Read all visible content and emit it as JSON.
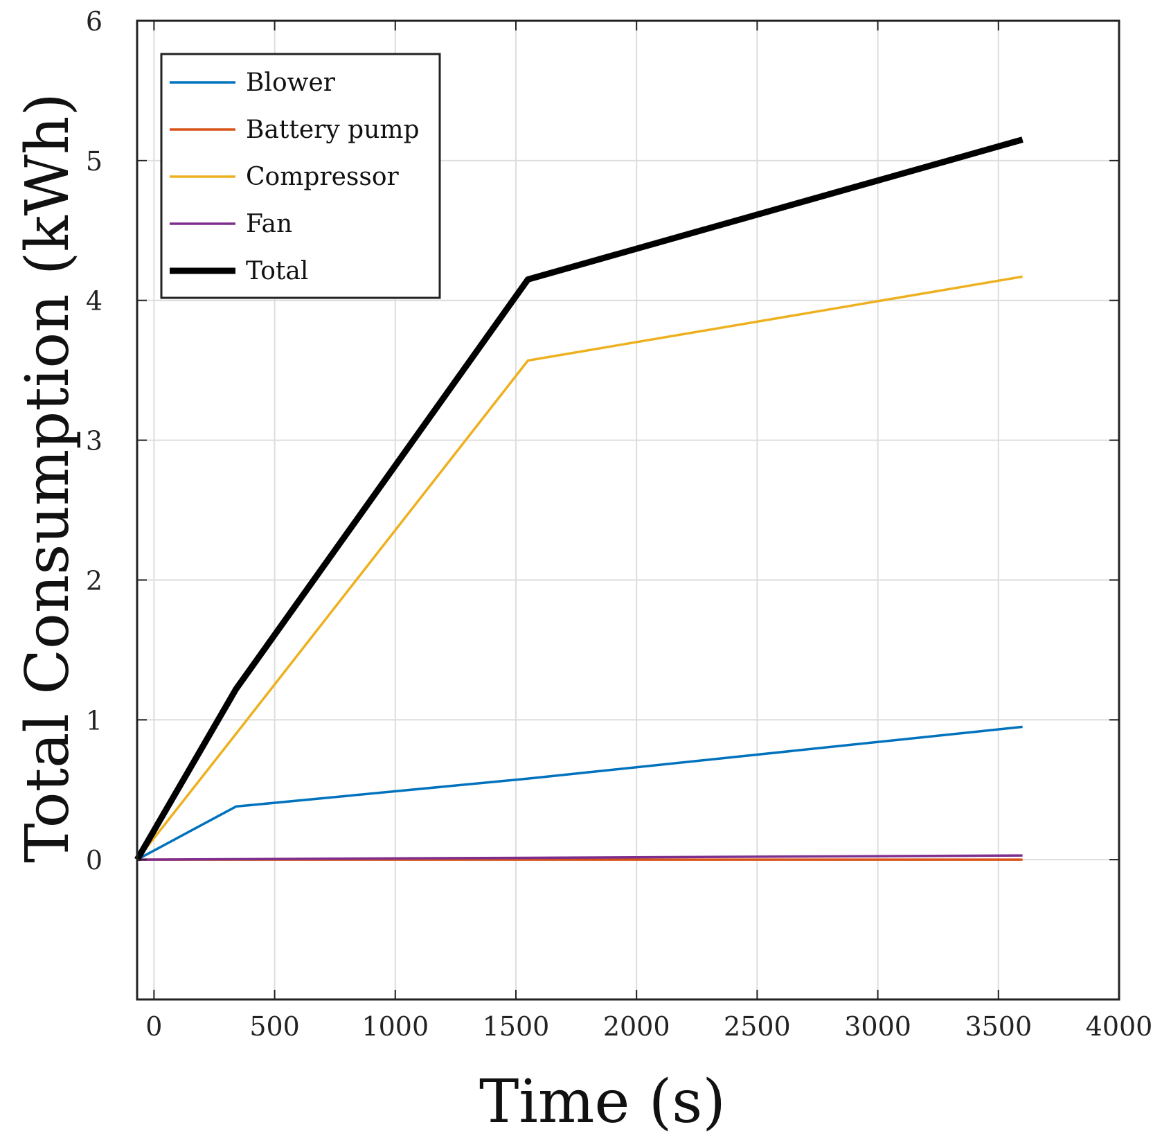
{
  "chart_data": {
    "type": "line",
    "title": "",
    "xlabel": "Time (s)",
    "ylabel": "Total Consumption (kWh)",
    "xlim": [
      -70,
      4000
    ],
    "ylim": [
      -1,
      6
    ],
    "xticks": [
      0,
      500,
      1000,
      1500,
      2000,
      2500,
      3000,
      3500,
      4000
    ],
    "xtick_labels": [
      "0",
      "500",
      "1000",
      "1500",
      "2000",
      "2500",
      "3000",
      "3500",
      "4000"
    ],
    "yticks": [
      0,
      1,
      2,
      3,
      4,
      5,
      6
    ],
    "ytick_labels": [
      "0",
      "1",
      "2",
      "3",
      "4",
      "5",
      "6"
    ],
    "grid": true,
    "legend_position": "top-left",
    "series": [
      {
        "name": "Blower",
        "color": "#0072BD",
        "x": [
          -70,
          340,
          1550,
          3600
        ],
        "y": [
          0.0,
          0.38,
          0.58,
          0.95
        ]
      },
      {
        "name": "Battery pump",
        "color": "#D95319",
        "x": [
          -70,
          3600
        ],
        "y": [
          0.0,
          0.0
        ]
      },
      {
        "name": "Compressor",
        "color": "#EDB120",
        "x": [
          -70,
          340,
          1550,
          3600
        ],
        "y": [
          0.0,
          0.9,
          3.57,
          4.17
        ]
      },
      {
        "name": "Fan",
        "color": "#7E2F8E",
        "x": [
          -70,
          3600
        ],
        "y": [
          0.0,
          0.03
        ]
      },
      {
        "name": "Total",
        "color": "#000000",
        "x": [
          -70,
          340,
          1550,
          3600
        ],
        "y": [
          0.0,
          1.22,
          4.15,
          5.15
        ]
      }
    ]
  }
}
